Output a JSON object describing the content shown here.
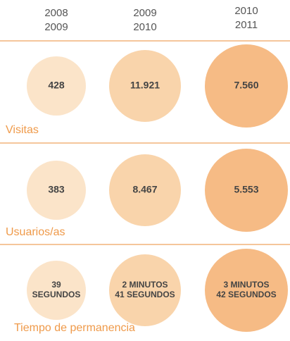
{
  "columns": [
    [
      "2008",
      "2009"
    ],
    [
      "2009",
      "2010"
    ],
    [
      "2010",
      "2011"
    ]
  ],
  "sections": [
    {
      "label": "Visitas",
      "values": [
        [
          "428"
        ],
        [
          "11.921"
        ],
        [
          "7.560"
        ]
      ]
    },
    {
      "label": "Usuarios/as",
      "values": [
        [
          "383"
        ],
        [
          "8.467"
        ],
        [
          "5.553"
        ]
      ]
    },
    {
      "label": "Tiempo de permanencia",
      "values": [
        [
          "39",
          "SEGUNDOS"
        ],
        [
          "2 MINUTOS",
          "41 SEGUNDOS"
        ],
        [
          "3 MINUTOS",
          "42 SEGUNDOS"
        ]
      ]
    }
  ]
}
